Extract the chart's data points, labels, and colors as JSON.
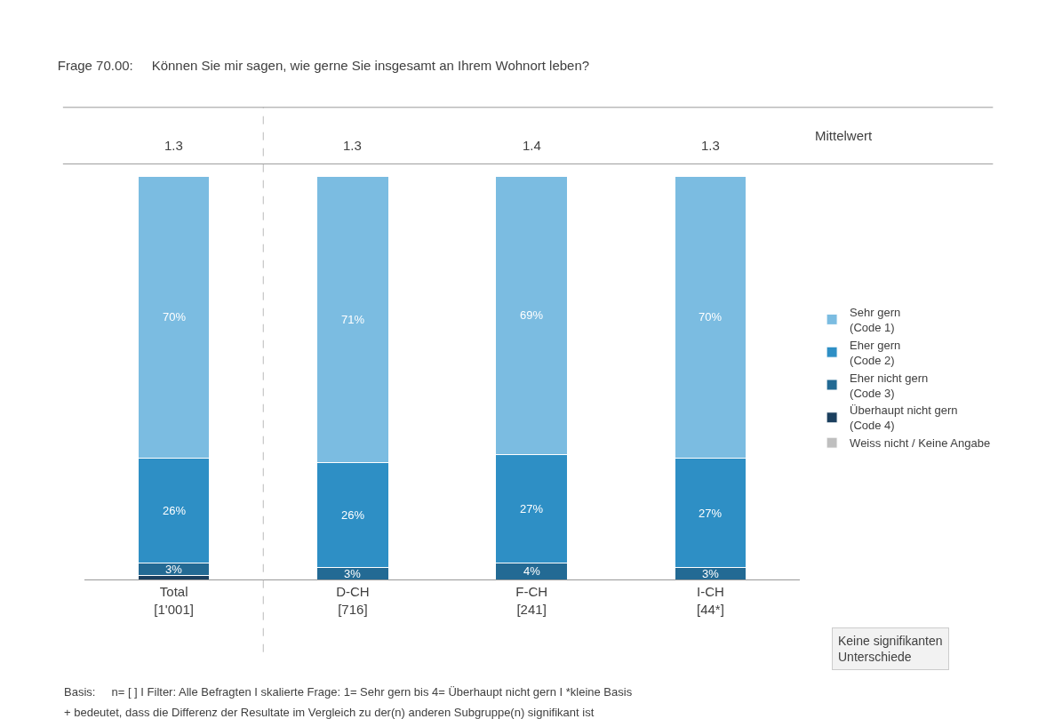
{
  "chart_data": {
    "type": "bar",
    "stacked": true,
    "title": "Frage 70.00:     Können Sie mir sagen, wie gerne Sie insgesamt an Ihrem Wohnort leben?",
    "categories": [
      "Total\n[1'001]",
      "D-CH\n[716]",
      "F-CH\n[241]",
      "I-CH\n[44*]"
    ],
    "ylim": [
      0,
      100
    ],
    "legend": "right",
    "tick_labels": "x",
    "series": [
      {
        "name": "Weiss nicht / Keine Angabe",
        "color": "#bfbfbf",
        "values": [
          0,
          0,
          0,
          0
        ],
        "value_labels": [
          null,
          null,
          null,
          null
        ]
      },
      {
        "name": "Überhaupt nicht gern\n(Code 4)",
        "color": "#1b3f5e",
        "values": [
          1,
          0,
          0,
          0
        ],
        "value_labels": [
          null,
          null,
          null,
          null
        ]
      },
      {
        "name": "Eher nicht gern\n(Code 3)",
        "color": "#236a94",
        "values": [
          3,
          3,
          4,
          3
        ],
        "value_labels": [
          "3%",
          "3%",
          "4%",
          "3%"
        ]
      },
      {
        "name": "Eher gern\n(Code 2)",
        "color": "#2e8fc5",
        "values": [
          26,
          26,
          27,
          27
        ],
        "value_labels": [
          "26%",
          "26%",
          "27%",
          "27%"
        ]
      },
      {
        "name": "Sehr gern\n(Code 1)",
        "color": "#7bbce1",
        "values": [
          70,
          71,
          69,
          70
        ],
        "value_labels": [
          "70%",
          "71%",
          "69%",
          "70%"
        ]
      }
    ],
    "annotations": [
      "1.3",
      "1.3",
      "1.4",
      "1.3",
      "Mittelwert",
      "Keine signifikanten\nUnterschiede",
      "Basis:     n= [ ] I Filter: Alle Befragten I skalierte Frage: 1= Sehr gern bis 4= Überhaupt nicht gern I *kleine Basis",
      "+ bedeutet, dass die Differenz der Resultate im Vergleich zu der(n) anderen Subgruppe(n) signifikant ist"
    ]
  }
}
